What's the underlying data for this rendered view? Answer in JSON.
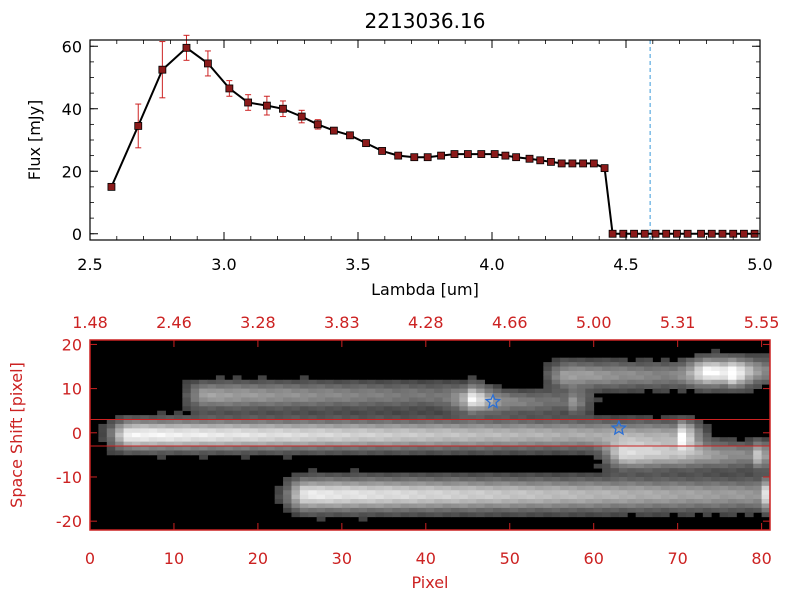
{
  "colors": {
    "axis": "#000000",
    "red": "#cc2222",
    "marker_fill": "#8b1a1a",
    "dashed": "#3a9ad9",
    "star": "#2a6fd6"
  },
  "chart_data": [
    {
      "type": "line",
      "title": "2213036.16",
      "xlabel": "Lambda [um]",
      "ylabel": "Flux [mJy]",
      "xlim": [
        2.5,
        5.0
      ],
      "ylim": [
        -2,
        62
      ],
      "xticks": [
        "2.5",
        "3.0",
        "3.5",
        "4.0",
        "4.5",
        "5.0"
      ],
      "xtick_values": [
        2.5,
        3.0,
        3.5,
        4.0,
        4.5,
        5.0
      ],
      "yticks": [
        "0",
        "20",
        "40",
        "60"
      ],
      "ytick_values": [
        0,
        20,
        40,
        60
      ],
      "marker_line_value": 4.59,
      "x": [
        2.58,
        2.68,
        2.77,
        2.86,
        2.94,
        3.02,
        3.09,
        3.16,
        3.22,
        3.29,
        3.35,
        3.41,
        3.47,
        3.53,
        3.59,
        3.65,
        3.71,
        3.76,
        3.81,
        3.86,
        3.91,
        3.96,
        4.01,
        4.05,
        4.09,
        4.14,
        4.18,
        4.22,
        4.26,
        4.3,
        4.34,
        4.38,
        4.42,
        4.45,
        4.49,
        4.53,
        4.57,
        4.61,
        4.65,
        4.69,
        4.73,
        4.78,
        4.82,
        4.86,
        4.9,
        4.94,
        4.98
      ],
      "y": [
        15,
        34.5,
        52.5,
        59.5,
        54.5,
        46.5,
        42,
        41,
        40,
        37.5,
        35,
        33,
        31.5,
        29,
        26.5,
        25,
        24.5,
        24.5,
        25,
        25.5,
        25.5,
        25.5,
        25.5,
        25,
        24.5,
        24,
        23.5,
        23,
        22.5,
        22.5,
        22.5,
        22.5,
        21,
        0,
        0,
        0,
        0,
        0,
        0,
        0,
        0,
        0,
        0,
        0,
        0,
        0,
        0
      ],
      "yerr": [
        0.5,
        7,
        9,
        4,
        4,
        2.5,
        2.5,
        3,
        2.5,
        2,
        1.5,
        1,
        1,
        1,
        0.5,
        0.5,
        0.5,
        0.5,
        0.5,
        0.5,
        0.5,
        0.5,
        0.5,
        0.5,
        0.5,
        0.5,
        0.5,
        0.5,
        0.5,
        0.5,
        0.5,
        0.5,
        0.5,
        0,
        0,
        0,
        0,
        0,
        0,
        0,
        0,
        0,
        0,
        0,
        0,
        0,
        0
      ]
    },
    {
      "type": "heatmap",
      "xlabel": "Pixel",
      "ylabel": "Space Shift [pixel]",
      "xlim": [
        0,
        81
      ],
      "ylim": [
        -22,
        21
      ],
      "xticks": [
        "0",
        "10",
        "20",
        "30",
        "40",
        "50",
        "60",
        "70",
        "80"
      ],
      "xtick_values": [
        0,
        10,
        20,
        30,
        40,
        50,
        60,
        70,
        80
      ],
      "yticks": [
        "-20",
        "-10",
        "0",
        "10",
        "20"
      ],
      "ytick_values": [
        -20,
        -10,
        0,
        10,
        20
      ],
      "top_axis_ticks": [
        "1.48",
        "2.46",
        "3.28",
        "3.83",
        "4.28",
        "4.66",
        "5.00",
        "5.31",
        "5.55"
      ],
      "top_axis_positions": [
        0,
        10,
        20,
        30,
        40,
        50,
        60,
        70,
        80
      ],
      "aperture_lines": [
        3,
        -3
      ],
      "sources": [
        {
          "x0": 5,
          "x1": 70,
          "y": -0.5,
          "peak": 0.95,
          "width": 3.2
        },
        {
          "x0": 26,
          "x1": 80,
          "y": -14,
          "peak": 0.9,
          "width": 3.5
        },
        {
          "x0": 14,
          "x1": 45,
          "y": 8.5,
          "peak": 0.55,
          "width": 3.0
        },
        {
          "x0": 46,
          "x1": 57,
          "y": 7,
          "peak": 0.5,
          "width": 2.5
        },
        {
          "x0": 57,
          "x1": 76,
          "y": 13,
          "peak": 0.55,
          "width": 3.0
        },
        {
          "x0": 74,
          "x1": 81,
          "y": 14,
          "peak": 0.7,
          "width": 3.0
        },
        {
          "x0": 64,
          "x1": 79,
          "y": -5,
          "peak": 0.75,
          "width": 3.0
        }
      ],
      "stars": [
        {
          "x": 48,
          "y": 7
        },
        {
          "x": 63,
          "y": 1
        }
      ]
    }
  ]
}
